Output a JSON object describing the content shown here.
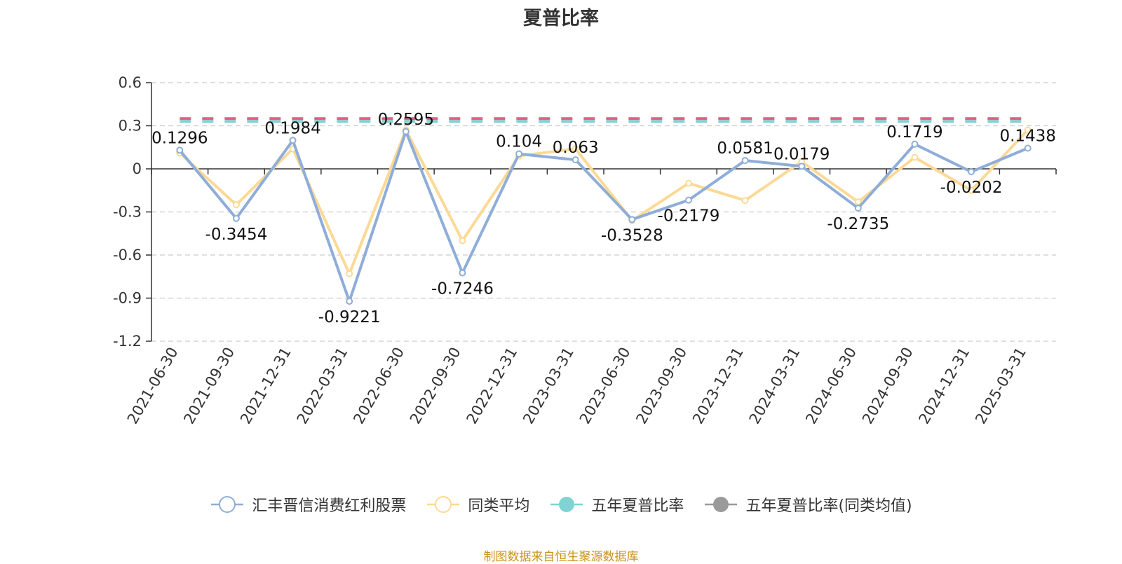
{
  "title": "夏普比率",
  "source_note": "制图数据来自恒生聚源数据库",
  "legend": [
    {
      "name": "汇丰晋信消费红利股票",
      "color": "#8fadd9",
      "marker": "hollow-circle"
    },
    {
      "name": "同类平均",
      "color": "#fcd995",
      "marker": "hollow-circle"
    },
    {
      "name": "五年夏普比率",
      "color": "#7fd3d3",
      "marker": "filled-circle"
    },
    {
      "name": "五年夏普比率(同类均值)",
      "color": "#9a9a9a",
      "marker": "filled-circle"
    }
  ],
  "chart_data": {
    "type": "line",
    "title": "夏普比率",
    "categories": [
      "2021-06-30",
      "2021-09-30",
      "2021-12-31",
      "2022-03-31",
      "2022-06-30",
      "2022-09-30",
      "2022-12-31",
      "2023-03-31",
      "2023-06-30",
      "2023-09-30",
      "2023-12-31",
      "2024-03-31",
      "2024-06-30",
      "2024-09-30",
      "2024-12-31",
      "2025-03-31"
    ],
    "y_ticks": [
      "0.6",
      "0.3",
      "0",
      "-0.3",
      "-0.6",
      "-0.9",
      "-1.2"
    ],
    "ylim": [
      -1.2,
      0.6
    ],
    "grid": true,
    "legend_position": "bottom",
    "series": [
      {
        "name": "汇丰晋信消费红利股票",
        "color": "#8fadd9",
        "values": [
          0.1296,
          -0.3454,
          0.1984,
          -0.9221,
          0.2595,
          -0.7246,
          0.104,
          0.063,
          -0.3528,
          -0.2179,
          0.0581,
          0.0179,
          -0.2735,
          0.1719,
          -0.0202,
          0.1438
        ],
        "labels": [
          "0.1296",
          "-0.3454",
          "0.1984",
          "-0.9221",
          "0.2595",
          "-0.7246",
          "0.104",
          "0.063",
          "-0.3528",
          "-0.2179",
          "0.0581",
          "0.0179",
          "-0.2735",
          "0.1719",
          "-0.0202",
          "0.1438"
        ]
      },
      {
        "name": "同类平均",
        "color": "#fcd995",
        "values": [
          0.11,
          -0.25,
          0.14,
          -0.73,
          0.27,
          -0.5,
          0.09,
          0.14,
          -0.36,
          -0.1,
          -0.22,
          0.05,
          -0.23,
          0.08,
          -0.15,
          0.27
        ]
      },
      {
        "name": "五年夏普比率",
        "color": "#7fd3d3",
        "values": [
          0.33,
          0.33,
          0.33,
          0.33,
          0.33,
          0.33,
          0.33,
          0.33,
          0.33,
          0.33,
          0.33,
          0.33,
          0.33,
          0.33,
          0.33,
          0.33
        ]
      },
      {
        "name": "五年夏普比率(同类均值)",
        "color": "#e0607e",
        "values": [
          0.35,
          0.35,
          0.35,
          0.35,
          0.35,
          0.35,
          0.35,
          0.35,
          0.35,
          0.35,
          0.35,
          0.35,
          0.35,
          0.35,
          0.35,
          0.35
        ]
      }
    ]
  }
}
